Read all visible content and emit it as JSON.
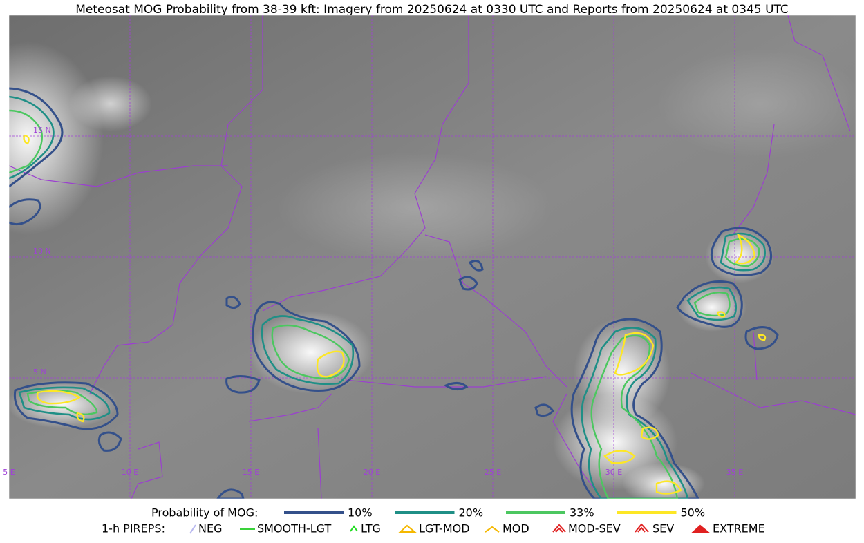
{
  "title": "Meteosat MOG Probability from 38-39 kft: Imagery from 20250624 at 0330 UTC and Reports from 20250624 at 0345 UTC",
  "map": {
    "lat_labels": [
      "15 N",
      "10 N",
      "5 N"
    ],
    "lon_labels": [
      "5 E",
      "10 E",
      "15 E",
      "20 E",
      "25 E",
      "30 E",
      "35 E"
    ]
  },
  "legend": {
    "probability": {
      "label": "Probability of MOG:",
      "items": [
        {
          "label": "10%",
          "color": "#34508a"
        },
        {
          "label": "20%",
          "color": "#1f8f86"
        },
        {
          "label": "33%",
          "color": "#4cc760"
        },
        {
          "label": "50%",
          "color": "#fde725"
        }
      ]
    },
    "pireps": {
      "label": "1-h PIREPS:",
      "items": [
        "NEG",
        "SMOOTH-LGT",
        "LTG",
        "LGT-MOD",
        "MOD",
        "MOD-SEV",
        "SEV",
        "EXTREME"
      ]
    }
  }
}
